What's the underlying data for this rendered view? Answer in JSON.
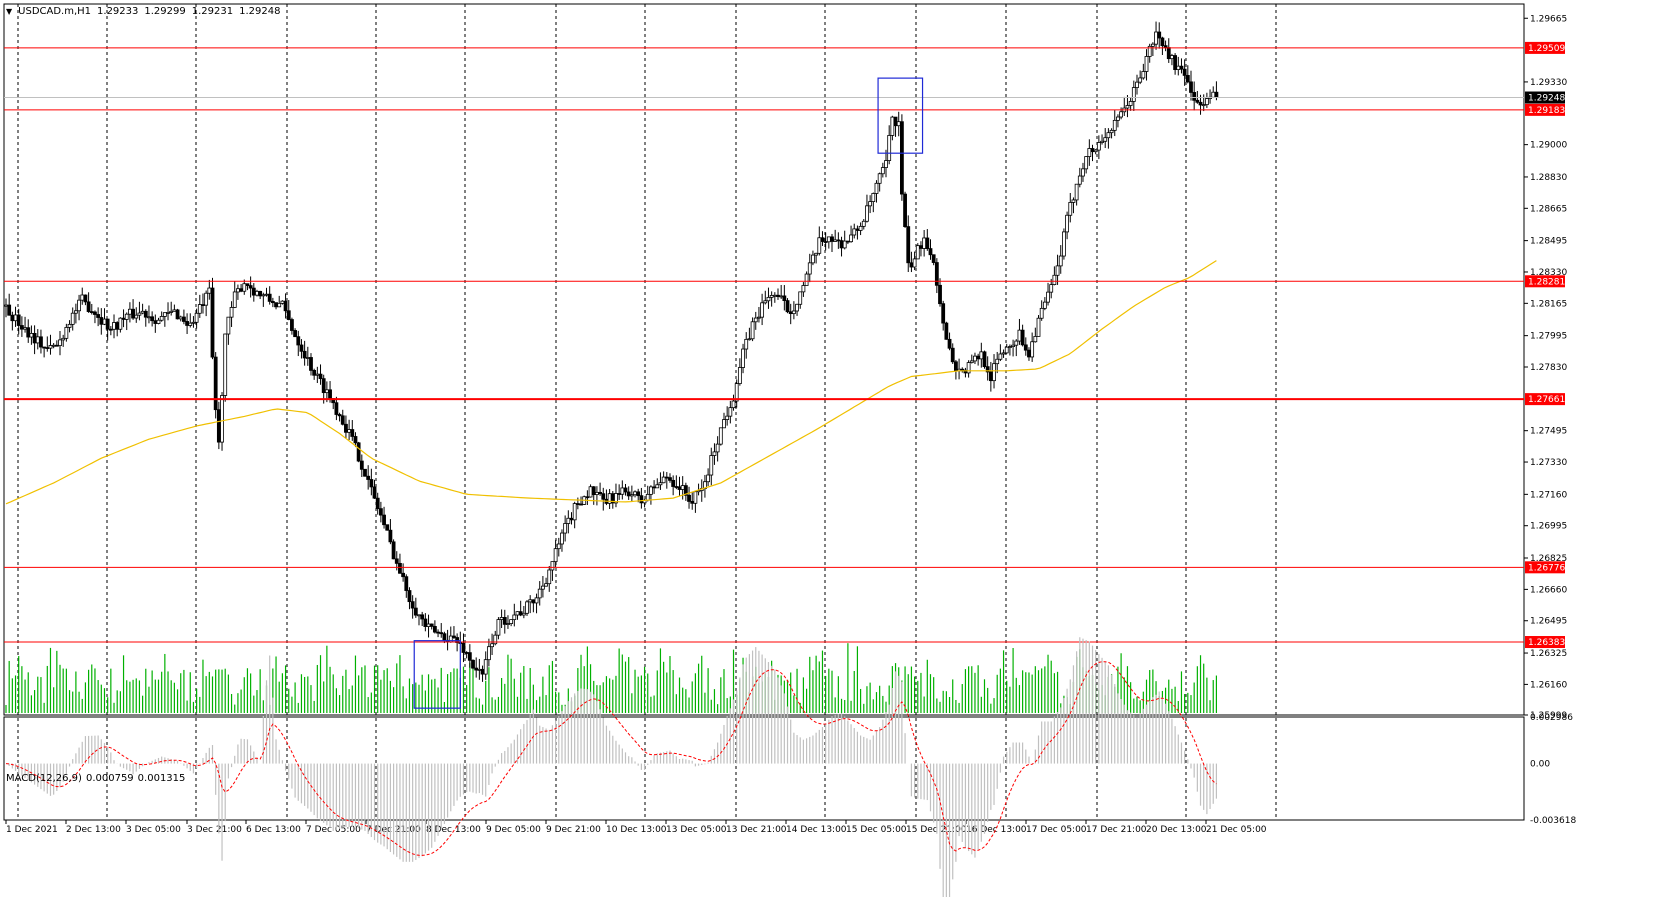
{
  "header": {
    "symbol": "USDCAD.m,H1",
    "ohlc": [
      "1.29233",
      "1.29299",
      "1.29231",
      "1.29248"
    ]
  },
  "macd_header": {
    "name": "MACD(12,26,9)",
    "values": [
      "0.000759",
      "0.001315"
    ]
  },
  "colors": {
    "candle": "#000000",
    "volume": "#00b000",
    "ma": "#f0c000",
    "level": "#ff0000",
    "box": "#1f2ad6",
    "macd_hist": "#c0c0c0",
    "macd_signal": "#ff0000"
  },
  "chart_data": [
    {
      "type": "candlestick",
      "symbol": "USDCAD.m",
      "timeframe": "H1",
      "ylim": [
        1.25999,
        1.2974
      ],
      "price_ticks": [
        "1.29665",
        "1.29330",
        "1.29000",
        "1.28830",
        "1.28665",
        "1.28495",
        "1.28330",
        "1.28165",
        "1.27995",
        "1.27830",
        "1.27495",
        "1.27330",
        "1.27160",
        "1.26995",
        "1.26825",
        "1.26660",
        "1.26495",
        "1.26325",
        "1.26160",
        "1.25999"
      ],
      "time_ticks": [
        "1 Dec 2021",
        "2 Dec 13:00",
        "3 Dec 05:00",
        "3 Dec 21:00",
        "6 Dec 13:00",
        "7 Dec 05:00",
        "7 Dec 21:00",
        "8 Dec 13:00",
        "9 Dec 05:00",
        "9 Dec 21:00",
        "10 Dec 13:00",
        "13 Dec 05:00",
        "13 Dec 21:00",
        "14 Dec 13:00",
        "15 Dec 05:00",
        "15 Dec 21:00",
        "16 Dec 13:00",
        "17 Dec 05:00",
        "17 Dec 21:00",
        "20 Dec 13:00",
        "21 Dec 05:00"
      ],
      "current_price": "1.29248",
      "levels": [
        {
          "value": 1.29509,
          "label": "1.29509"
        },
        {
          "value": 1.29183,
          "label": "1.29183"
        },
        {
          "value": 1.28281,
          "label": "1.28281"
        },
        {
          "value": 1.27661,
          "label": "1.27661"
        },
        {
          "value": 1.26776,
          "label": "1.26776"
        },
        {
          "value": 1.26383,
          "label": "1.26383"
        }
      ],
      "price_path": [
        [
          0,
          1.2815
        ],
        [
          8,
          1.2808
        ],
        [
          18,
          1.28
        ],
        [
          28,
          1.2792
        ],
        [
          35,
          1.2795
        ],
        [
          42,
          1.2808
        ],
        [
          50,
          1.2818
        ],
        [
          58,
          1.2812
        ],
        [
          68,
          1.2803
        ],
        [
          78,
          1.281
        ],
        [
          88,
          1.2812
        ],
        [
          98,
          1.2808
        ],
        [
          108,
          1.2812
        ],
        [
          118,
          1.2805
        ],
        [
          125,
          1.2815
        ],
        [
          130,
          1.2822
        ],
        [
          133,
          1.277
        ],
        [
          136,
          1.2742
        ],
        [
          140,
          1.28
        ],
        [
          146,
          1.282
        ],
        [
          152,
          1.2828
        ],
        [
          160,
          1.2822
        ],
        [
          168,
          1.2818
        ],
        [
          176,
          1.2815
        ],
        [
          184,
          1.28
        ],
        [
          190,
          1.279
        ],
        [
          196,
          1.278
        ],
        [
          204,
          1.277
        ],
        [
          212,
          1.2758
        ],
        [
          220,
          1.2745
        ],
        [
          226,
          1.2732
        ],
        [
          232,
          1.2718
        ],
        [
          238,
          1.2705
        ],
        [
          244,
          1.269
        ],
        [
          250,
          1.2675
        ],
        [
          256,
          1.2662
        ],
        [
          262,
          1.2652
        ],
        [
          268,
          1.2645
        ],
        [
          276,
          1.2642
        ],
        [
          284,
          1.264
        ],
        [
          290,
          1.2635
        ],
        [
          296,
          1.2626
        ],
        [
          302,
          1.262
        ],
        [
          306,
          1.2635
        ],
        [
          312,
          1.2648
        ],
        [
          320,
          1.2652
        ],
        [
          328,
          1.2655
        ],
        [
          336,
          1.2662
        ],
        [
          342,
          1.2672
        ],
        [
          348,
          1.2685
        ],
        [
          354,
          1.2698
        ],
        [
          362,
          1.2712
        ],
        [
          370,
          1.2718
        ],
        [
          378,
          1.2712
        ],
        [
          386,
          1.2715
        ],
        [
          394,
          1.2718
        ],
        [
          402,
          1.2712
        ],
        [
          410,
          1.272
        ],
        [
          418,
          1.2725
        ],
        [
          426,
          1.272
        ],
        [
          434,
          1.2712
        ],
        [
          442,
          1.2722
        ],
        [
          448,
          1.274
        ],
        [
          454,
          1.2755
        ],
        [
          460,
          1.2768
        ],
        [
          466,
          1.279
        ],
        [
          472,
          1.2805
        ],
        [
          478,
          1.2815
        ],
        [
          484,
          1.2822
        ],
        [
          490,
          1.2818
        ],
        [
          496,
          1.2812
        ],
        [
          502,
          1.2822
        ],
        [
          508,
          1.2835
        ],
        [
          514,
          1.2848
        ],
        [
          520,
          1.2852
        ],
        [
          526,
          1.2848
        ],
        [
          532,
          1.285
        ],
        [
          538,
          1.2855
        ],
        [
          544,
          1.2865
        ],
        [
          550,
          1.2878
        ],
        [
          556,
          1.289
        ],
        [
          560,
          1.2915
        ],
        [
          564,
          1.291
        ],
        [
          566,
          1.2875
        ],
        [
          570,
          1.2835
        ],
        [
          574,
          1.284
        ],
        [
          580,
          1.2852
        ],
        [
          586,
          1.284
        ],
        [
          590,
          1.2815
        ],
        [
          594,
          1.28
        ],
        [
          598,
          1.2785
        ],
        [
          604,
          1.278
        ],
        [
          610,
          1.2785
        ],
        [
          616,
          1.279
        ],
        [
          622,
          1.2778
        ],
        [
          628,
          1.279
        ],
        [
          634,
          1.2795
        ],
        [
          640,
          1.28
        ],
        [
          646,
          1.279
        ],
        [
          652,
          1.2808
        ],
        [
          658,
          1.282
        ],
        [
          664,
          1.2835
        ],
        [
          670,
          1.286
        ],
        [
          676,
          1.288
        ],
        [
          682,
          1.2895
        ],
        [
          688,
          1.2898
        ],
        [
          694,
          1.2905
        ],
        [
          700,
          1.291
        ],
        [
          706,
          1.2918
        ],
        [
          712,
          1.2928
        ],
        [
          718,
          1.294
        ],
        [
          722,
          1.295
        ],
        [
          726,
          1.2958
        ],
        [
          732,
          1.295
        ],
        [
          738,
          1.2942
        ],
        [
          744,
          1.2935
        ],
        [
          748,
          1.293
        ],
        [
          752,
          1.292
        ],
        [
          756,
          1.2922
        ],
        [
          762,
          1.2925
        ]
      ],
      "sma_path": [
        [
          0,
          1.2711
        ],
        [
          30,
          1.2722
        ],
        [
          60,
          1.2735
        ],
        [
          90,
          1.2745
        ],
        [
          120,
          1.2752
        ],
        [
          150,
          1.2757
        ],
        [
          170,
          1.2761
        ],
        [
          190,
          1.2759
        ],
        [
          210,
          1.2748
        ],
        [
          230,
          1.2735
        ],
        [
          260,
          1.2723
        ],
        [
          290,
          1.2716
        ],
        [
          330,
          1.2714
        ],
        [
          360,
          1.2713
        ],
        [
          390,
          1.2712
        ],
        [
          420,
          1.2714
        ],
        [
          450,
          1.2722
        ],
        [
          480,
          1.2736
        ],
        [
          510,
          1.275
        ],
        [
          540,
          1.2765
        ],
        [
          556,
          1.2773
        ],
        [
          570,
          1.2778
        ],
        [
          600,
          1.2781
        ],
        [
          630,
          1.2781
        ],
        [
          650,
          1.2782
        ],
        [
          670,
          1.279
        ],
        [
          690,
          1.2803
        ],
        [
          710,
          1.2815
        ],
        [
          730,
          1.2825
        ],
        [
          745,
          1.283
        ],
        [
          762,
          1.2839
        ]
      ],
      "boxes": [
        {
          "t0": 257,
          "t1": 286,
          "p_lo": 1.26035,
          "p_hi": 1.2639
        },
        {
          "t0": 549,
          "t1": 577,
          "p_lo": 1.28955,
          "p_hi": 1.2935
        }
      ]
    },
    {
      "type": "histogram+line",
      "name": "MACD(12,26,9)",
      "ylim": [
        -0.003618,
        0.002986
      ],
      "ticks": [
        "0.002986",
        "0.00",
        "-0.003618"
      ],
      "latest": {
        "macd": 0.000759,
        "signal": 0.001315
      }
    }
  ]
}
